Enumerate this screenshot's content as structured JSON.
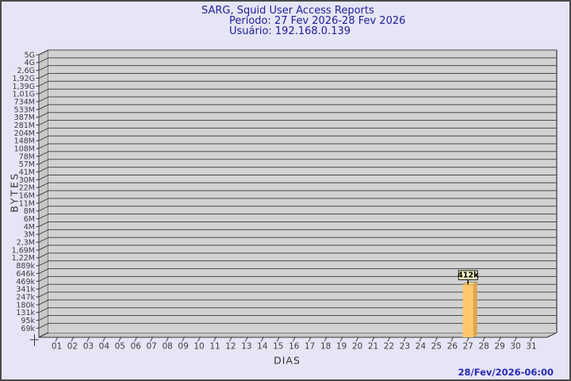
{
  "header": {
    "title": "SARG, Squid User Access Reports",
    "period_line": "Período: 27 Fev 2026-28 Fev 2026",
    "user_line": "Usuário: 192.168.0.139"
  },
  "footer": {
    "generated_at": "28/Fev/2026-06:00"
  },
  "chart_data": {
    "type": "bar",
    "title": "SARG, Squid User Access Reports",
    "subtitle": "Período: 27 Fev 2026-28 Fev 2026 / Usuário: 192.168.0.139",
    "xlabel": "DIAS",
    "ylabel": "BYTES",
    "y_scale": "log",
    "y_tick_labels": [
      "5G",
      "4G",
      "2,6G",
      "1,92G",
      "1,39G",
      "1,01G",
      "734M",
      "533M",
      "387M",
      "281M",
      "204M",
      "148M",
      "108M",
      "78M",
      "57M",
      "41M",
      "30M",
      "22M",
      "16M",
      "11M",
      "8M",
      "6M",
      "4M",
      "3M",
      "2,3M",
      "1,69M",
      "1,22M",
      "889k",
      "646k",
      "469k",
      "341k",
      "247k",
      "180k",
      "131k",
      "95k",
      "69k"
    ],
    "categories": [
      "01",
      "02",
      "03",
      "04",
      "05",
      "06",
      "07",
      "08",
      "09",
      "10",
      "11",
      "12",
      "13",
      "14",
      "15",
      "16",
      "17",
      "18",
      "19",
      "20",
      "21",
      "22",
      "23",
      "24",
      "25",
      "26",
      "27",
      "28",
      "29",
      "30",
      "31"
    ],
    "bars": [
      {
        "category": "27",
        "value_label": "412k",
        "value_bytes": 412000
      }
    ],
    "legend": null,
    "grid": "horizontal",
    "colors": {
      "plot_bg": "#d2d2d2",
      "wall": "#c8c8c8",
      "grid_line": "#4a4a4a",
      "axis_line": "#3a3a3a",
      "tick_text": "#3d3d3d",
      "bar_front": "#fdc76b",
      "bar_side": "#dfa64e",
      "bar_top": "#fdd992",
      "annotation_bg": "#f5f5c3",
      "annotation_border": "#000000",
      "annotation_text": "#000000",
      "title_text": "#20209b",
      "timestamp_text": "#2929b8",
      "page_bg": "#e5e5f6"
    }
  }
}
